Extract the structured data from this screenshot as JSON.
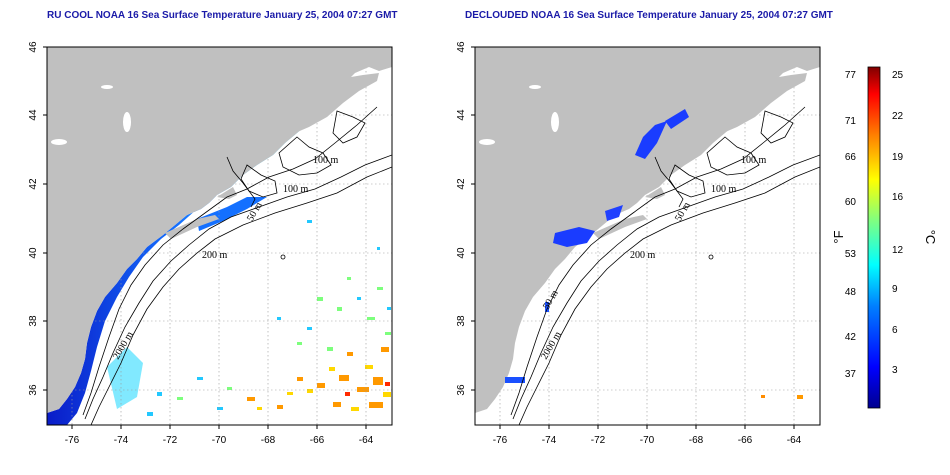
{
  "panels": [
    {
      "title": "RU COOL NOAA 16 Sea Surface Temperature January 25, 2004 07:27 GMT",
      "contour_labels": [
        "100 m",
        "100 m",
        "50 m",
        "200 m",
        "2000 m"
      ]
    },
    {
      "title": "DECLOUDED NOAA 16 Sea Surface Temperature January 25, 2004 07:27 GMT",
      "contour_labels": [
        "100 m",
        "100 m",
        "50 m",
        "200 m",
        "50 m",
        "2000 m"
      ]
    }
  ],
  "axes": {
    "x_ticks": [
      "-76",
      "-74",
      "-72",
      "-70",
      "-68",
      "-66",
      "-64"
    ],
    "y_ticks": [
      "46",
      "44",
      "42",
      "40",
      "38",
      "36"
    ],
    "xlim": [
      -77.1,
      -63.1
    ],
    "ylim": [
      35,
      46
    ],
    "grid": "dotted"
  },
  "colorbar": {
    "unit_f": "°F",
    "unit_c": "°C",
    "f_ticks": [
      "77",
      "71",
      "66",
      "60",
      "53",
      "48",
      "42",
      "37"
    ],
    "c_ticks": [
      "25",
      "22",
      "19",
      "16",
      "12",
      "9",
      "6",
      "3"
    ],
    "colors": [
      "#00008f",
      "#0000ff",
      "#0080ff",
      "#00ffff",
      "#80ff80",
      "#ffff00",
      "#ff8000",
      "#ff0000",
      "#800000"
    ]
  },
  "colors": {
    "land": "#c0c0c0",
    "title": "#1a1aa8"
  }
}
